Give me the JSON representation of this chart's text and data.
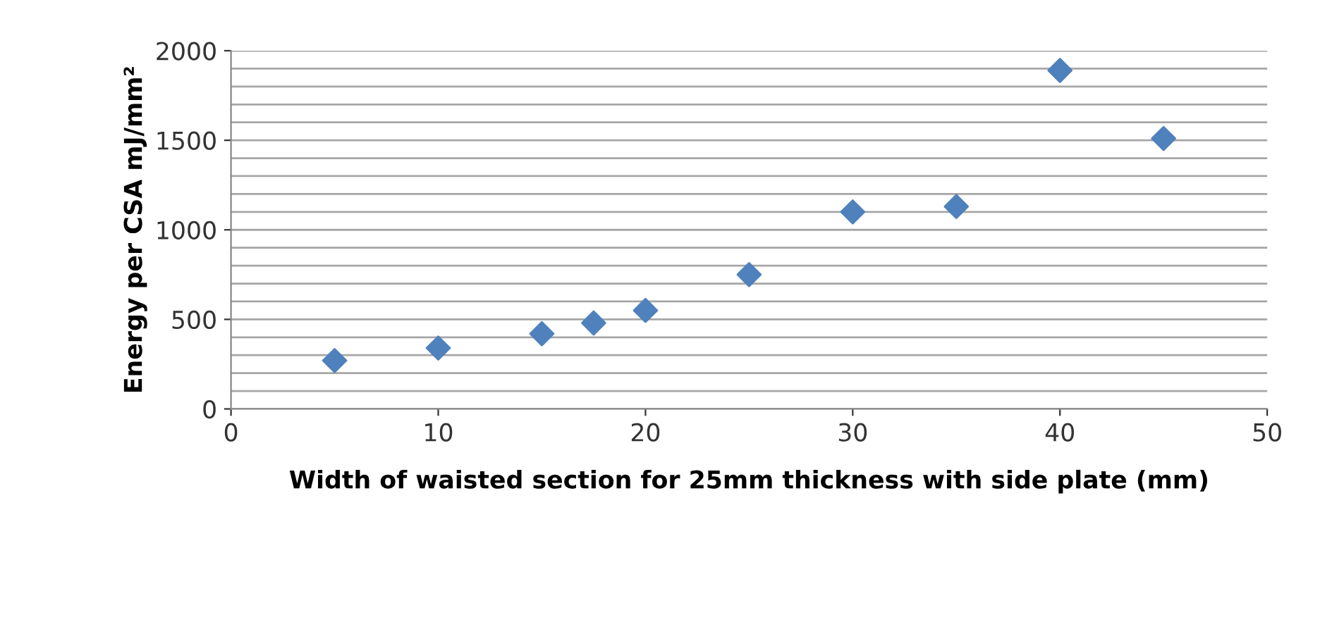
{
  "chart_data": {
    "type": "scatter",
    "xlabel": "Width of waisted section for 25mm thickness with side plate (mm)",
    "ylabel": "Energy per CSA mJ/mm²",
    "x": [
      5,
      10,
      15,
      17.5,
      20,
      25,
      30,
      35,
      40,
      45
    ],
    "series": [
      {
        "color": "#4f81bd",
        "values": [
          270,
          340,
          420,
          480,
          550,
          750,
          1100,
          1130,
          1890,
          1510
        ]
      }
    ],
    "marker": "diamond",
    "xlim": [
      0,
      50
    ],
    "xticks": [
      0,
      10,
      20,
      30,
      40,
      50
    ],
    "ylim": [
      0,
      2000
    ],
    "yticks": [
      0,
      {
        "value": 100,
        "label": null
      },
      {
        "value": 200,
        "label": null
      },
      {
        "value": 300,
        "label": null
      },
      {
        "value": 400,
        "label": null
      },
      500,
      {
        "value": 600,
        "label": null
      },
      {
        "value": 700,
        "label": null
      },
      {
        "value": 800,
        "label": null
      },
      {
        "value": 900,
        "label": null
      },
      1000,
      {
        "value": 1100,
        "label": null
      },
      {
        "value": 1200,
        "label": null
      },
      {
        "value": 1300,
        "label": null
      },
      {
        "value": 1400,
        "label": null
      },
      1500,
      {
        "value": 1600,
        "label": null
      },
      {
        "value": 1700,
        "label": null
      },
      {
        "value": 1800,
        "label": null
      },
      {
        "value": 1900,
        "label": null
      },
      2000
    ],
    "grid": "y",
    "legend": false
  }
}
